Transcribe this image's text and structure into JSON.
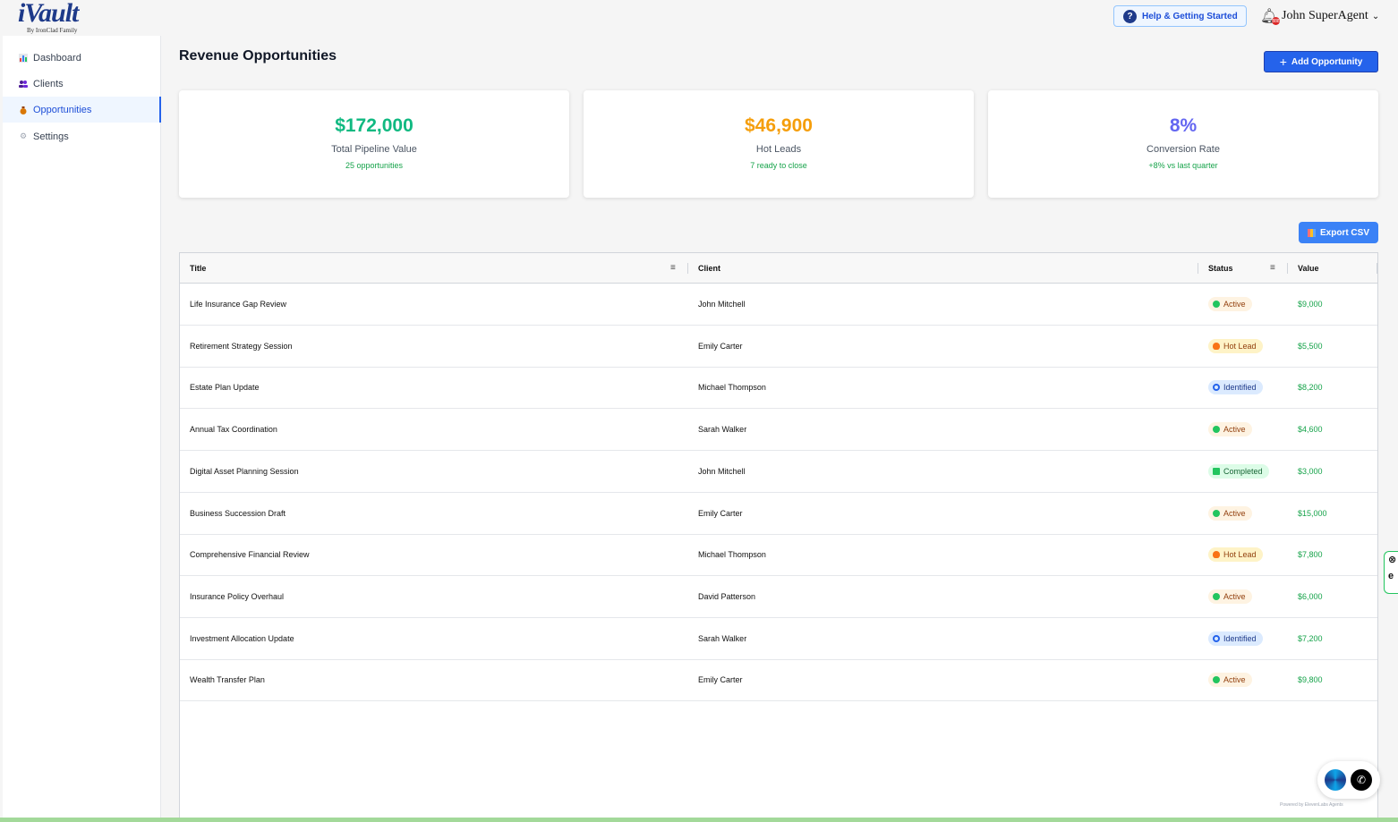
{
  "app": {
    "logo_main": "iVault",
    "logo_sub": "By IronClad Family",
    "help_label": "Help & Getting Started",
    "user_name": "John SuperAgent",
    "bell_badge": "888"
  },
  "sidebar": {
    "items": [
      {
        "label": "Dashboard",
        "icon": "chart-icon"
      },
      {
        "label": "Clients",
        "icon": "users-icon"
      },
      {
        "label": "Opportunities",
        "icon": "money-bag-icon"
      },
      {
        "label": "Settings",
        "icon": "gear-icon"
      }
    ]
  },
  "main": {
    "title": "Revenue Opportunities",
    "add_label": "Add Opportunity",
    "export_label": "Export CSV"
  },
  "cards": [
    {
      "value": "$172,000",
      "label": "Total Pipeline Value",
      "sub": "25 opportunities",
      "color": "#10b981"
    },
    {
      "value": "$46,900",
      "label": "Hot Leads",
      "sub": "7 ready to close",
      "color": "#f59e0b"
    },
    {
      "value": "8%",
      "label": "Conversion Rate",
      "sub": "+8% vs last quarter",
      "color": "#6366f1"
    }
  ],
  "table": {
    "headers": {
      "title": "Title",
      "client": "Client",
      "status": "Status",
      "value": "Value"
    },
    "rows": [
      {
        "title": "Life Insurance Gap Review",
        "client": "John Mitchell",
        "status": "Active",
        "value": "$9,000"
      },
      {
        "title": "Retirement Strategy Session",
        "client": "Emily Carter",
        "status": "Hot Lead",
        "value": "$5,500"
      },
      {
        "title": "Estate Plan Update",
        "client": "Michael Thompson",
        "status": "Identified",
        "value": "$8,200"
      },
      {
        "title": "Annual Tax Coordination",
        "client": "Sarah Walker",
        "status": "Active",
        "value": "$4,600"
      },
      {
        "title": "Digital Asset Planning Session",
        "client": "John Mitchell",
        "status": "Completed",
        "value": "$3,000"
      },
      {
        "title": "Business Succession Draft",
        "client": "Emily Carter",
        "status": "Active",
        "value": "$15,000"
      },
      {
        "title": "Comprehensive Financial Review",
        "client": "Michael Thompson",
        "status": "Hot Lead",
        "value": "$7,800"
      },
      {
        "title": "Insurance Policy Overhaul",
        "client": "David Patterson",
        "status": "Active",
        "value": "$6,000"
      },
      {
        "title": "Investment Allocation Update",
        "client": "Sarah Walker",
        "status": "Identified",
        "value": "$7,200"
      },
      {
        "title": "Wealth Transfer Plan",
        "client": "Emily Carter",
        "status": "Active",
        "value": "$9,800"
      }
    ]
  },
  "widget": {
    "powered": "Powered by ElevenLabs Agents"
  }
}
